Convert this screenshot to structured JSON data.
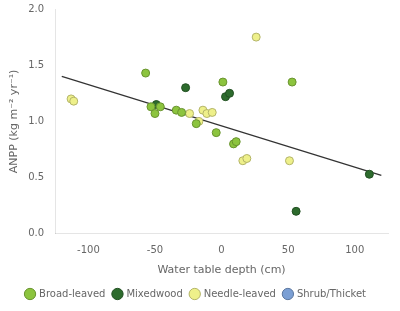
{
  "chart_data": {
    "type": "scatter",
    "xlabel": "Water table depth (cm)",
    "ylabel": "ANPP (kg m⁻² yr⁻¹)",
    "xlim": [
      -125,
      125
    ],
    "ylim": [
      0.0,
      2.0
    ],
    "xticks": [
      -100,
      -50,
      0,
      50,
      100
    ],
    "yticks": [
      {
        "value": 0,
        "label": "0.0"
      },
      0.5,
      {
        "value": 1,
        "label": "1.0"
      },
      1.5,
      {
        "value": 2,
        "label": "2.0"
      }
    ],
    "grid": false,
    "legend": "bottom",
    "series": [
      {
        "name": "Broad-leaved",
        "color": "#8cc43e",
        "x": [
          -57,
          -53,
          -50,
          -46,
          -34,
          -30,
          -19,
          -4,
          1,
          9,
          11,
          53
        ],
        "values": [
          1.43,
          1.13,
          1.07,
          1.13,
          1.1,
          1.08,
          0.98,
          0.9,
          1.35,
          0.8,
          0.82,
          1.35
        ]
      },
      {
        "name": "Mixedwood",
        "color": "#2d6b2d",
        "x": [
          -49,
          -27,
          3,
          6,
          56,
          111
        ],
        "values": [
          1.15,
          1.3,
          1.22,
          1.25,
          0.2,
          0.53
        ]
      },
      {
        "name": "Needle-leaved",
        "color": "#eef08a",
        "x": [
          -113,
          -111,
          -24,
          -17,
          -14,
          -11,
          -7,
          16,
          19,
          26,
          51
        ],
        "values": [
          1.2,
          1.18,
          1.07,
          1.0,
          1.1,
          1.07,
          1.08,
          0.65,
          0.67,
          1.75,
          0.65
        ]
      },
      {
        "name": "Shrub/Thicket",
        "color": "#7b9fd4",
        "x": [],
        "values": []
      }
    ],
    "regression": {
      "x": [
        -120,
        120
      ],
      "values": [
        1.4,
        0.52
      ],
      "color": "#333333"
    }
  }
}
